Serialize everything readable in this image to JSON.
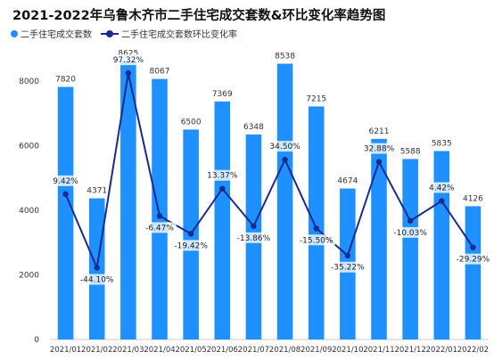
{
  "title": "2021-2022年乌鲁木齐市二手住宅成交套数&环比变化率趋势图",
  "legend": {
    "bar_series": "二手住宅成交套数",
    "line_series": "二手住宅成交套数环比变化率"
  },
  "colors": {
    "bar": "#1e90ff",
    "line": "#1a2a8f"
  },
  "chart_data": {
    "type": "bar",
    "title": "2021-2022年乌鲁木齐市二手住宅成交套数&环比变化率趋势图",
    "categories": [
      "2021/01",
      "2021/02",
      "2021/03",
      "2021/04",
      "2021/05",
      "2021/06",
      "2021/07",
      "2021/08",
      "2021/09",
      "2021/10",
      "2021/11",
      "2021/12",
      "2022/01",
      "2022/02"
    ],
    "series": [
      {
        "name": "二手住宅成交套数",
        "type": "bar",
        "values": [
          7820,
          4371,
          8625,
          8067,
          6500,
          7369,
          6348,
          8538,
          7215,
          4674,
          6211,
          5588,
          5835,
          4126
        ]
      },
      {
        "name": "二手住宅成交套数环比变化率",
        "type": "line",
        "unit": "%",
        "values": [
          9.42,
          -44.1,
          97.32,
          -6.47,
          -19.42,
          13.37,
          -13.86,
          34.5,
          -15.5,
          -35.22,
          32.88,
          -10.03,
          4.42,
          -29.29
        ],
        "labels": [
          "9.42%",
          "-44.10%",
          "97.32%",
          "-6.47%",
          "-19.42%",
          "13.37%",
          "-13.86%",
          "34.50%",
          "-15.50%",
          "-35.22%",
          "32.88%",
          "-10.03%",
          "4.42%",
          "-29.29%"
        ]
      }
    ],
    "y_ticks": [
      "0",
      "2000",
      "4000",
      "6000",
      "8000"
    ],
    "ylim": [
      0,
      8800
    ],
    "grid": false,
    "legend_position": "top-left"
  }
}
